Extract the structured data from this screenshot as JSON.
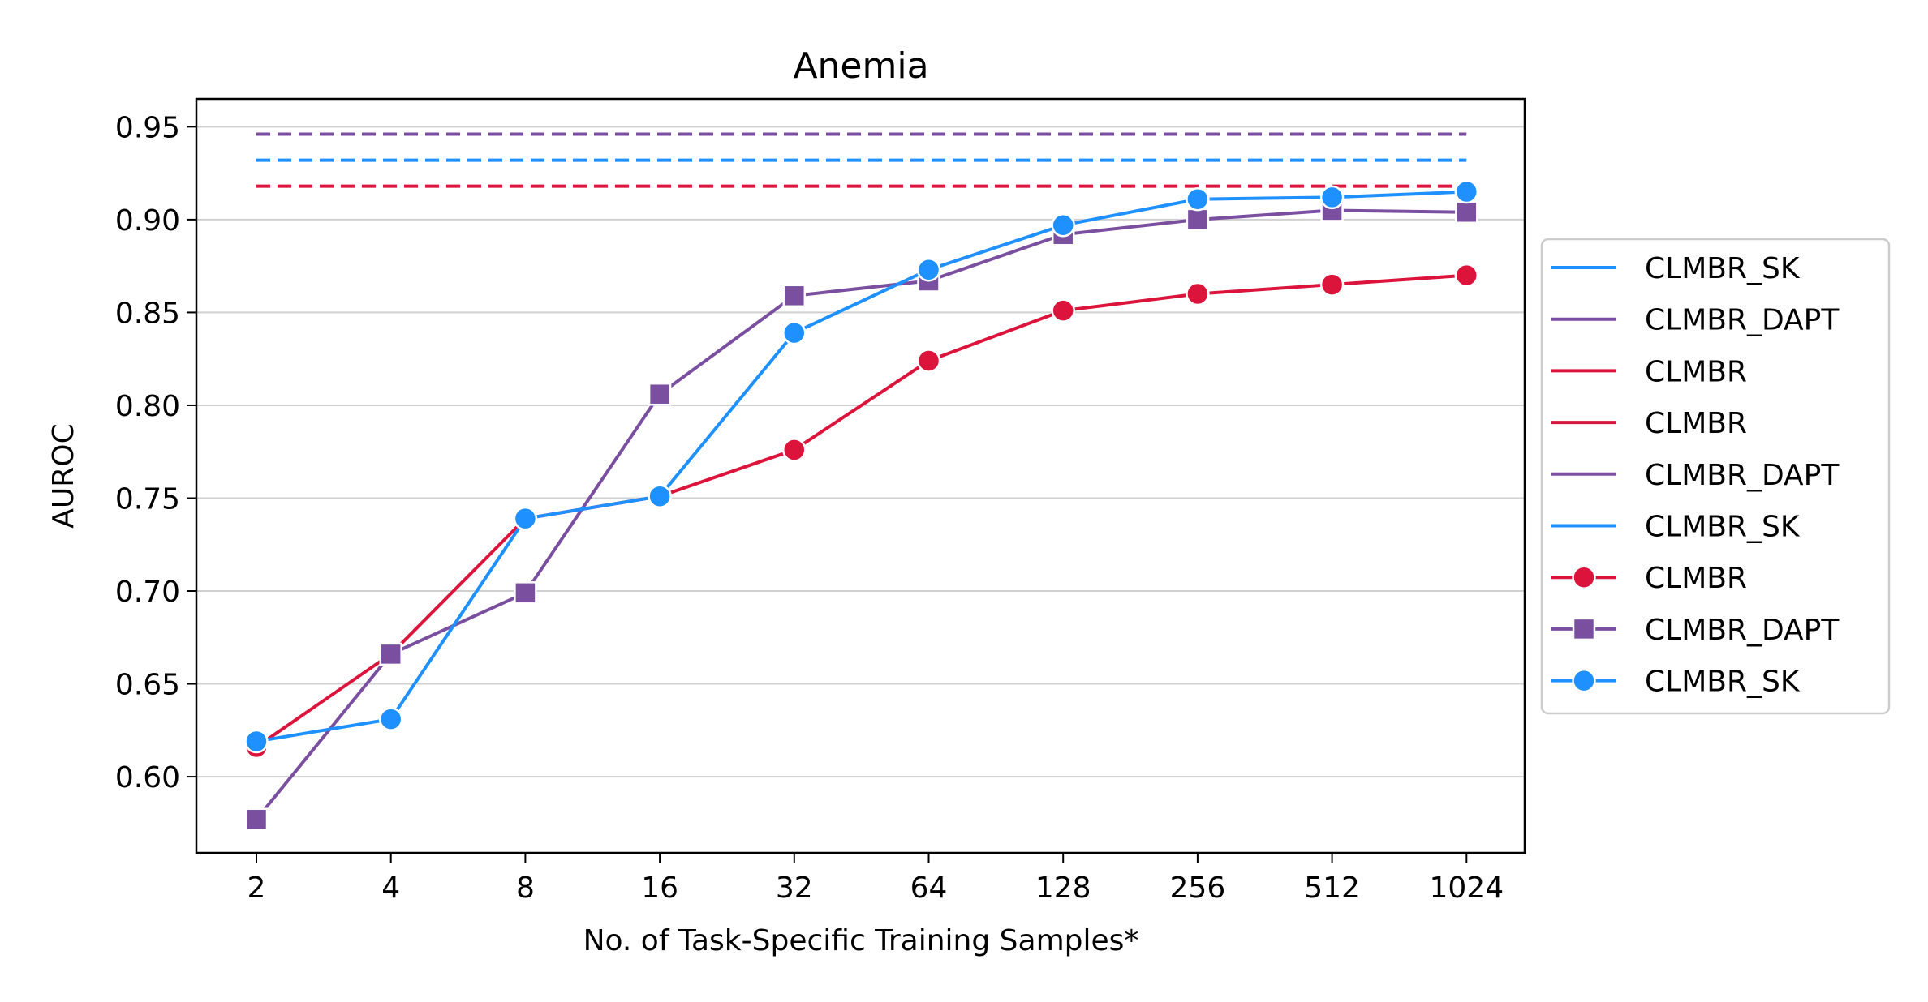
{
  "chart_data": {
    "type": "line",
    "title": "Anemia",
    "xlabel": "No. of Task-Specific Training Samples*",
    "ylabel": "AUROC",
    "categories": [
      "2",
      "4",
      "8",
      "16",
      "32",
      "64",
      "128",
      "256",
      "512",
      "1024"
    ],
    "ylim": [
      0.559,
      0.965
    ],
    "yticks": [
      "0.60",
      "0.65",
      "0.70",
      "0.75",
      "0.80",
      "0.85",
      "0.90",
      "0.95"
    ],
    "grid": "horizontal",
    "legend_position": "outside-right",
    "reference_lines": [
      {
        "name": "CLMBR_SK",
        "value": 0.932,
        "color": "#1e90ff",
        "style": "dashed"
      },
      {
        "name": "CLMBR_DAPT",
        "value": 0.946,
        "color": "#7b4fa0",
        "style": "dashed"
      },
      {
        "name": "CLMBR",
        "value": 0.918,
        "color": "#dc143c",
        "style": "dashed"
      }
    ],
    "series": [
      {
        "name": "CLMBR",
        "color": "#dc143c",
        "marker": "circle",
        "values": [
          0.616,
          0.666,
          0.739,
          0.751,
          0.776,
          0.824,
          0.851,
          0.86,
          0.865,
          0.87
        ]
      },
      {
        "name": "CLMBR_DAPT",
        "color": "#7b4fa0",
        "marker": "square",
        "values": [
          0.577,
          0.666,
          0.699,
          0.806,
          0.859,
          0.867,
          0.892,
          0.9,
          0.905,
          0.904
        ]
      },
      {
        "name": "CLMBR_SK",
        "color": "#1e90ff",
        "marker": "circle",
        "values": [
          0.619,
          0.631,
          0.739,
          0.751,
          0.839,
          0.873,
          0.897,
          0.911,
          0.912,
          0.915
        ]
      }
    ],
    "legend": [
      {
        "label": "CLMBR_SK",
        "color": "#1e90ff",
        "marker": "none"
      },
      {
        "label": "CLMBR_DAPT",
        "color": "#7b4fa0",
        "marker": "none"
      },
      {
        "label": "CLMBR",
        "color": "#dc143c",
        "marker": "none"
      },
      {
        "label": "CLMBR",
        "color": "#dc143c",
        "marker": "none"
      },
      {
        "label": "CLMBR_DAPT",
        "color": "#7b4fa0",
        "marker": "none"
      },
      {
        "label": "CLMBR_SK",
        "color": "#1e90ff",
        "marker": "none"
      },
      {
        "label": "CLMBR",
        "color": "#dc143c",
        "marker": "circle"
      },
      {
        "label": "CLMBR_DAPT",
        "color": "#7b4fa0",
        "marker": "square"
      },
      {
        "label": "CLMBR_SK",
        "color": "#1e90ff",
        "marker": "circle"
      }
    ]
  }
}
